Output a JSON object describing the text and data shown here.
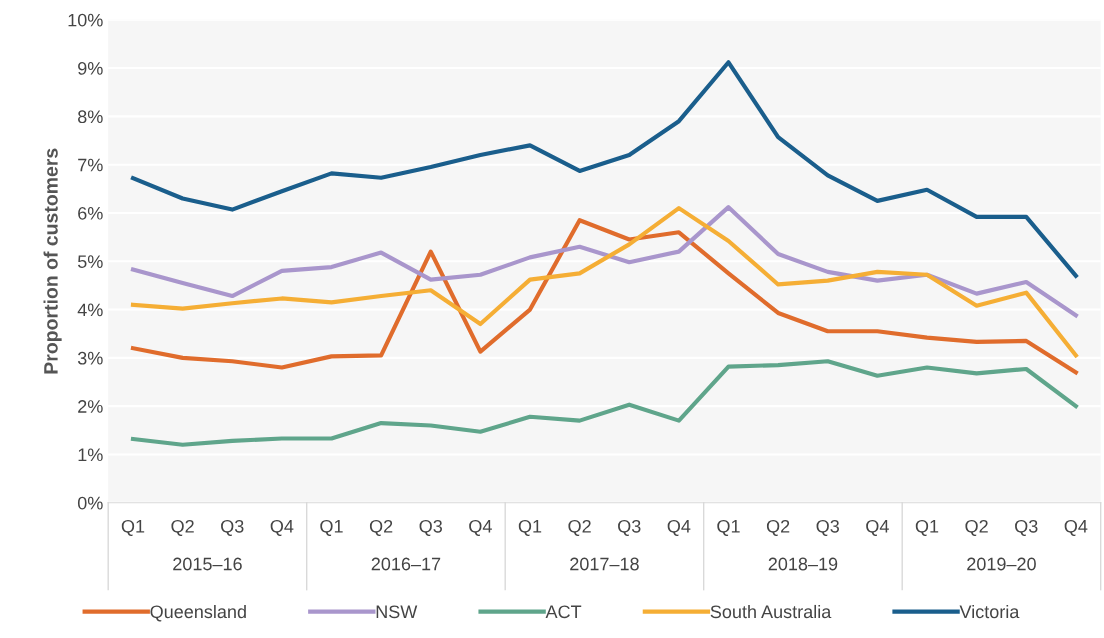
{
  "chart_data": {
    "type": "line",
    "ylabel": "Proportion of customers",
    "categories": [
      "Q1",
      "Q2",
      "Q3",
      "Q4",
      "Q1",
      "Q2",
      "Q3",
      "Q4",
      "Q1",
      "Q2",
      "Q3",
      "Q4",
      "Q1",
      "Q2",
      "Q3",
      "Q4",
      "Q1",
      "Q2",
      "Q3",
      "Q4"
    ],
    "annotations": [
      "2015–16",
      "2016–17",
      "2017–18",
      "2018–19",
      "2019–20"
    ],
    "series": [
      {
        "name": "Queensland",
        "color": "#e06c2c",
        "values": [
          3.2,
          3.0,
          2.93,
          2.8,
          3.03,
          3.05,
          5.2,
          3.13,
          4.0,
          5.85,
          5.45,
          5.6,
          4.75,
          3.93,
          3.55,
          3.55,
          3.42,
          3.33,
          3.35,
          2.7
        ]
      },
      {
        "name": "NSW",
        "color": "#a996cc",
        "values": [
          4.83,
          4.55,
          4.28,
          4.8,
          4.88,
          5.18,
          4.62,
          4.72,
          5.08,
          5.3,
          4.98,
          5.2,
          6.12,
          5.15,
          4.78,
          4.6,
          4.72,
          4.33,
          4.57,
          3.88
        ]
      },
      {
        "name": "ACT",
        "color": "#5fa58b",
        "values": [
          1.32,
          1.2,
          1.28,
          1.33,
          1.33,
          1.65,
          1.6,
          1.47,
          1.78,
          1.7,
          2.03,
          1.7,
          2.82,
          2.85,
          2.93,
          2.63,
          2.8,
          2.68,
          2.77,
          2.0
        ]
      },
      {
        "name": "South Australia",
        "color": "#f5ae35",
        "values": [
          4.1,
          4.02,
          4.13,
          4.23,
          4.15,
          4.28,
          4.4,
          3.7,
          4.62,
          4.75,
          5.35,
          6.1,
          5.42,
          4.52,
          4.6,
          4.78,
          4.72,
          4.08,
          4.35,
          3.05
        ]
      },
      {
        "name": "Victoria",
        "color": "#1a5e8c",
        "values": [
          6.72,
          6.3,
          6.07,
          6.45,
          6.82,
          6.73,
          6.95,
          7.2,
          7.4,
          6.87,
          7.2,
          7.9,
          9.12,
          7.57,
          6.78,
          6.25,
          6.48,
          5.92,
          5.92,
          4.7
        ]
      }
    ],
    "ylim": [
      0,
      10
    ],
    "yticks": [
      {
        "value": 0,
        "label": "0%"
      },
      {
        "value": 1,
        "label": "1%"
      },
      {
        "value": 2,
        "label": "2%"
      },
      {
        "value": 3,
        "label": "3%"
      },
      {
        "value": 4,
        "label": "4%"
      },
      {
        "value": 5,
        "label": "5%"
      },
      {
        "value": 6,
        "label": "6%"
      },
      {
        "value": 7,
        "label": "7%"
      },
      {
        "value": 8,
        "label": "8%"
      },
      {
        "value": 9,
        "label": "9%"
      },
      {
        "value": 10,
        "label": "10%"
      }
    ],
    "grid": "y",
    "legend": "bottom",
    "marker": "none",
    "line_style": "solid"
  }
}
